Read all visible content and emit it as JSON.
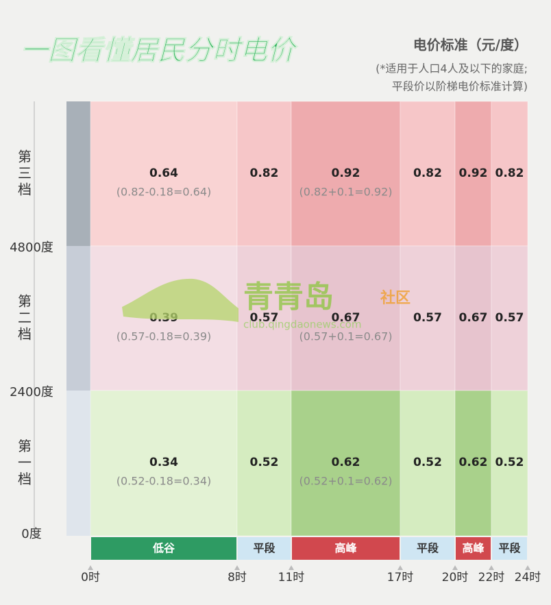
{
  "header": {
    "title": "一图看懂居民分时电价",
    "unit": "电价标准（元/度）",
    "note_lines": [
      "(*适用于人口4人及以下的家庭;",
      "平段价以阶梯电价标准计算)"
    ]
  },
  "tiers": [
    "第三档",
    "第二档",
    "第一档"
  ],
  "boundaries": [
    "4800度",
    "2400度",
    "0度"
  ],
  "periods": [
    "低谷",
    "平段",
    "高峰",
    "平段",
    "高峰",
    "平段"
  ],
  "hours": [
    "0时",
    "8时",
    "11时",
    "17时",
    "20时",
    "22时",
    "24时"
  ],
  "cells": [
    [
      {
        "value": 0.64,
        "formula": "(0.82-0.18=0.64)"
      },
      {
        "value": 0.82
      },
      {
        "value": 0.92,
        "formula": "(0.82+0.1=0.92)"
      },
      {
        "value": 0.82
      },
      {
        "value": 0.92
      },
      {
        "value": 0.82
      }
    ],
    [
      {
        "value": 0.39,
        "formula": "(0.57-0.18=0.39)"
      },
      {
        "value": 0.57
      },
      {
        "value": 0.67,
        "formula": "(0.57+0.1=0.67)"
      },
      {
        "value": 0.57
      },
      {
        "value": 0.67
      },
      {
        "value": 0.57
      }
    ],
    [
      {
        "value": 0.34,
        "formula": "(0.52-0.18=0.34)"
      },
      {
        "value": 0.52
      },
      {
        "value": 0.62,
        "formula": "(0.52+0.1=0.62)"
      },
      {
        "value": 0.52
      },
      {
        "value": 0.62
      },
      {
        "value": 0.52
      }
    ]
  ],
  "watermark": {
    "name": "青青岛",
    "tag": "社区",
    "url": "club.qingdaonews.com"
  }
}
